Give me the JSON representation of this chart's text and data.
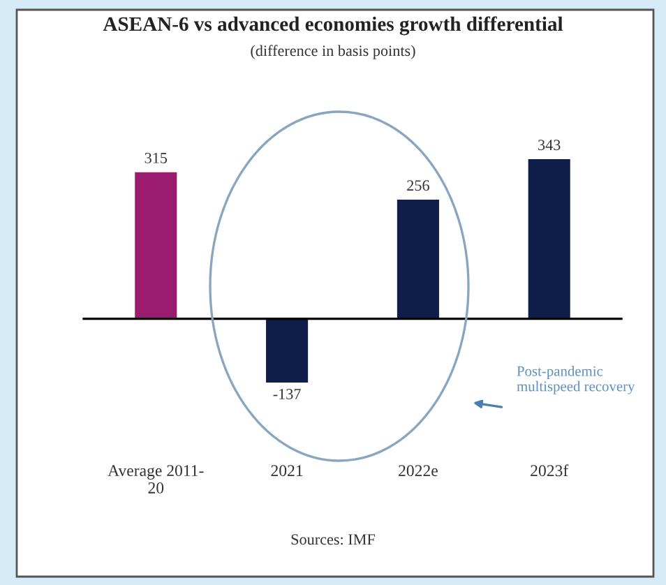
{
  "chart_data": {
    "type": "bar",
    "title": "ASEAN-6 vs advanced economies growth differential",
    "subtitle": "(difference in basis points)",
    "categories": [
      "Average 2011-20",
      "2021",
      "2022e",
      "2023f"
    ],
    "values": [
      315,
      -137,
      256,
      343
    ],
    "colors": [
      "#9b1b6e",
      "#0f1d4a",
      "#0f1d4a",
      "#0f1d4a"
    ],
    "data_labels": true,
    "annotations": [
      "Post-pandemic multispeed recovery",
      "Sources: IMF"
    ]
  }
}
